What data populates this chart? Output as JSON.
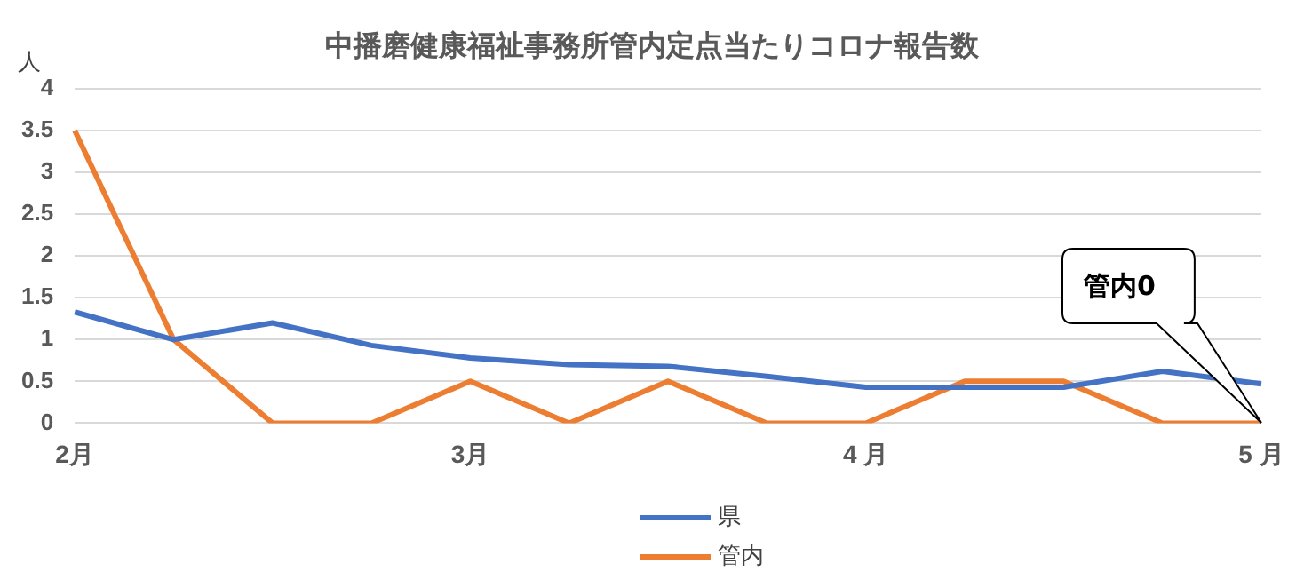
{
  "chart_data": {
    "type": "line",
    "title": "中播磨健康福祉事務所管内定点当たりコロナ報告数",
    "ylabel": "人",
    "categories": [
      "2月",
      null,
      null,
      null,
      "3月",
      null,
      null,
      null,
      "4 月",
      null,
      null,
      null,
      "5 月"
    ],
    "series": [
      {
        "name": "県",
        "color": "#4472c4",
        "values": [
          1.33,
          1.0,
          1.2,
          0.93,
          0.78,
          0.7,
          0.68,
          0.56,
          0.43,
          0.43,
          0.43,
          0.62,
          0.47
        ]
      },
      {
        "name": "管内",
        "color": "#ed7d31",
        "values": [
          3.5,
          1.0,
          0,
          0,
          0.5,
          0,
          0.5,
          0,
          0,
          0.5,
          0.5,
          0,
          0
        ]
      }
    ],
    "ylim": [
      0,
      4
    ],
    "yticks": [
      0,
      0.5,
      1,
      1.5,
      2,
      2.5,
      3,
      3.5,
      4
    ],
    "grid": "y",
    "legend": "bottom",
    "marker": "none",
    "line_style": "solid",
    "annotations": [
      "管内0"
    ]
  }
}
